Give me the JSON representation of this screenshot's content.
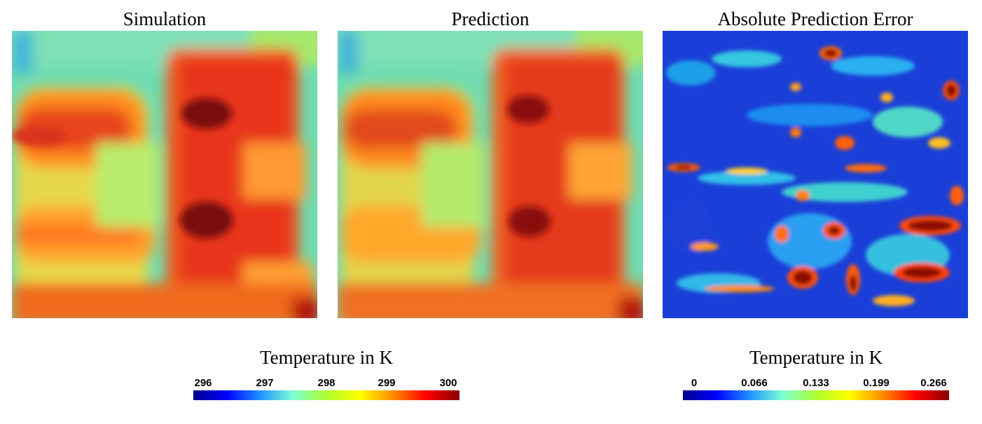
{
  "panels": [
    {
      "title": "Simulation"
    },
    {
      "title": "Prediction"
    },
    {
      "title": "Absolute Prediction Error"
    }
  ],
  "colorbars": [
    {
      "title": "Temperature in K",
      "ticks": [
        "296",
        "297",
        "298",
        "299",
        "300"
      ]
    },
    {
      "title": "Temperature in K",
      "ticks": [
        "0",
        "0.066",
        "0.133",
        "0.199",
        "0.266"
      ]
    }
  ],
  "colormap": {
    "name": "jet",
    "stops": [
      "#00008b",
      "#0000ff",
      "#1e90ff",
      "#7fffd4",
      "#adff2f",
      "#ffff00",
      "#ff8c00",
      "#ff0000",
      "#8b0000"
    ]
  }
}
